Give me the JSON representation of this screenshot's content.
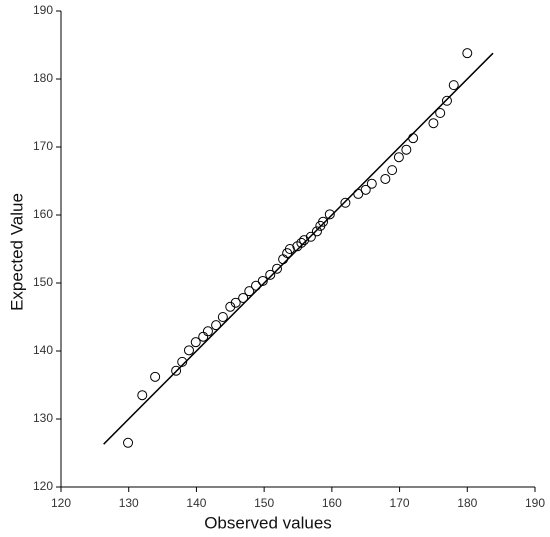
{
  "chart_data": {
    "type": "scatter",
    "x_label": "Observed values",
    "y_label": "Expected Value",
    "x": [
      129.9,
      132,
      133.9,
      137,
      137.9,
      138.9,
      139.9,
      141,
      141.7,
      142.9,
      143.9,
      145,
      145.8,
      146.9,
      147.8,
      148.8,
      149.8,
      150.9,
      151.9,
      152.8,
      153.4,
      153.8,
      154.9,
      155.5,
      155.9,
      156.9,
      157.8,
      158.3,
      158.7,
      159.7,
      162,
      163.9,
      165,
      165.9,
      167.9,
      168.9,
      169.9,
      171,
      172,
      175,
      176,
      177,
      178,
      180
    ],
    "values": [
      126.5,
      133.5,
      136.2,
      137.1,
      138.4,
      140.1,
      141.3,
      142.1,
      142.9,
      143.8,
      145,
      146.5,
      147.1,
      147.8,
      148.8,
      149.6,
      150.3,
      151.2,
      152.1,
      153.5,
      154.4,
      155,
      155.4,
      155.9,
      156.3,
      156.8,
      157.6,
      158.4,
      159,
      160.1,
      161.8,
      163.1,
      163.7,
      164.6,
      165.3,
      166.6,
      168.5,
      169.6,
      171.3,
      173.5,
      175,
      176.8,
      179.1,
      183.8
    ],
    "color": "#000000",
    "reference_line": {
      "x": [
        126.3,
        183.8
      ],
      "y": [
        126.3,
        183.8
      ],
      "color": "#000000"
    },
    "xlim": [
      120,
      190
    ],
    "xticks": [
      120,
      130,
      140,
      150,
      160,
      170,
      180,
      190
    ],
    "ylim": [
      120,
      190
    ],
    "yticks": [
      120,
      130,
      140,
      150,
      160,
      170,
      180,
      190
    ],
    "grid": false
  }
}
